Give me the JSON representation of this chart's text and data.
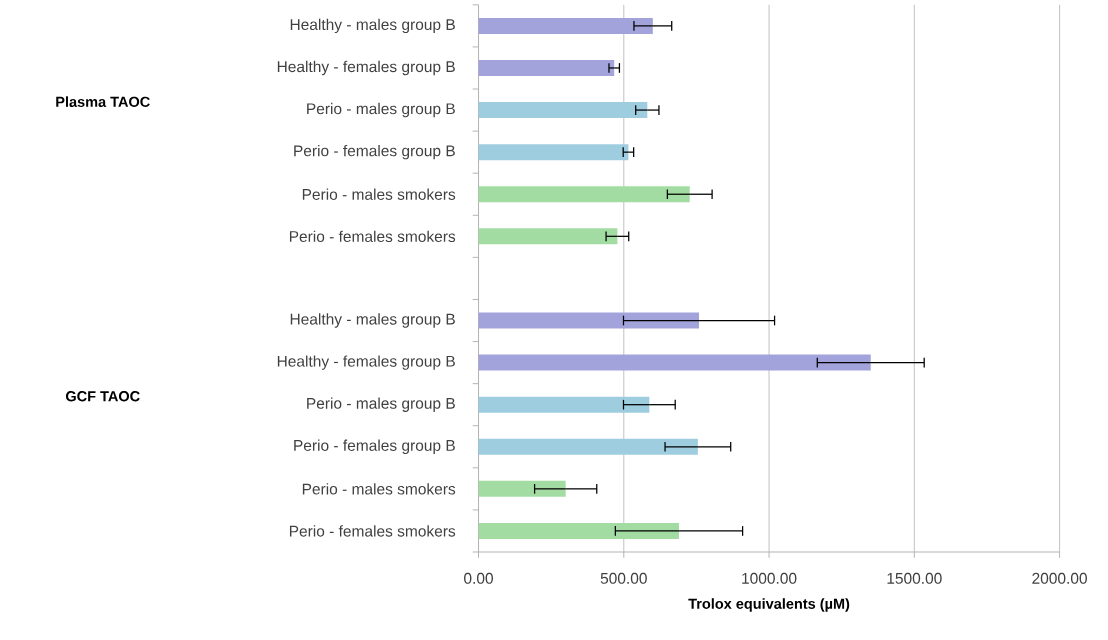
{
  "chart_data": {
    "type": "bar",
    "orientation": "horizontal",
    "xlabel": "Trolox equivalents (µM)",
    "categories": [
      "Healthy - males group B",
      "Healthy - females group B",
      "Perio - males group B",
      "Perio - females group B",
      "Perio - males smokers",
      "Perio - females smokers",
      null,
      "Healthy - males group B",
      "Healthy - females group B",
      "Perio - males group B",
      "Perio - females group B",
      "Perio - males smokers",
      "Perio - females smokers"
    ],
    "values": [
      600,
      467,
      581,
      516,
      727,
      478,
      null,
      759,
      1350,
      588,
      755,
      300,
      690
    ],
    "errors": [
      65,
      18,
      40,
      18,
      77,
      39,
      null,
      260,
      184,
      89,
      113,
      107,
      219
    ],
    "colors": [
      "#a3a3dc",
      "#a3a3dc",
      "#9fcde0",
      "#9fcde0",
      "#a3dca3",
      "#a3dca3",
      "#ffffff",
      "#a3a3dc",
      "#a3a3dc",
      "#9fcde0",
      "#9fcde0",
      "#a3dca3",
      "#a3dca3"
    ],
    "xlim": [
      0,
      2000
    ],
    "xticks": [
      {
        "value": 0,
        "label": "0.00"
      },
      {
        "value": 500,
        "label": "500.00"
      },
      {
        "value": 1000,
        "label": "1000.00"
      },
      {
        "value": 1500,
        "label": "1500.00"
      },
      {
        "value": 2000,
        "label": "2000.00"
      }
    ],
    "grid": "x",
    "annotations": [
      "Plasma TAOC",
      "GCF TAOC"
    ]
  }
}
